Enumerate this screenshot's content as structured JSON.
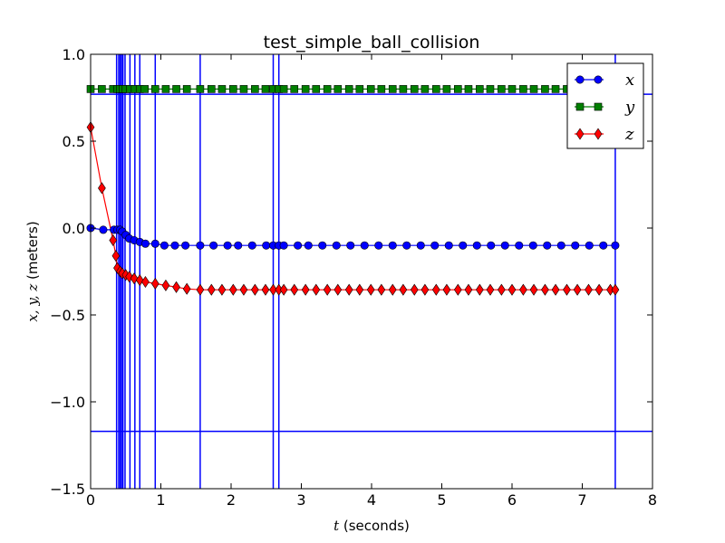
{
  "chart_data": {
    "type": "line",
    "title": "test_simple_ball_collision",
    "xlabel": {
      "var": "t",
      "rest": " (seconds)"
    },
    "ylabel": {
      "var": "x, y, z",
      "rest": " (meters)"
    },
    "xlim": [
      0,
      8
    ],
    "ylim": [
      -1.5,
      1.0
    ],
    "xticks": [
      0,
      1,
      2,
      3,
      4,
      5,
      6,
      7,
      8
    ],
    "xtick_labels": [
      "0",
      "1",
      "2",
      "3",
      "4",
      "5",
      "6",
      "7",
      "8"
    ],
    "yticks": [
      -1.5,
      -1.0,
      -0.5,
      0.0,
      0.5,
      1.0
    ],
    "ytick_labels": [
      "−1.5",
      "−1.0",
      "−0.5",
      "0.0",
      "0.5",
      "1.0"
    ],
    "grid": false,
    "legend_position": "top-right",
    "vlines": [
      0.37,
      0.4,
      0.42,
      0.44,
      0.46,
      0.49,
      0.56,
      0.63,
      0.7,
      0.92,
      1.56,
      2.6,
      2.68,
      7.47
    ],
    "hlines": [
      0.77,
      -1.17
    ],
    "line_color": "#0000ff",
    "series": [
      {
        "name": "x",
        "color": "#0000ff",
        "marker": "circle",
        "x": [
          0.0,
          0.18,
          0.33,
          0.38,
          0.42,
          0.45,
          0.5,
          0.55,
          0.62,
          0.7,
          0.78,
          0.92,
          1.05,
          1.2,
          1.35,
          1.56,
          1.75,
          1.95,
          2.1,
          2.3,
          2.5,
          2.6,
          2.68,
          2.75,
          2.95,
          3.1,
          3.3,
          3.5,
          3.7,
          3.9,
          4.1,
          4.3,
          4.5,
          4.7,
          4.9,
          5.1,
          5.3,
          5.5,
          5.7,
          5.9,
          6.1,
          6.3,
          6.5,
          6.7,
          6.9,
          7.1,
          7.3,
          7.47
        ],
        "values": [
          0.0,
          -0.01,
          -0.01,
          -0.01,
          -0.01,
          -0.02,
          -0.04,
          -0.06,
          -0.07,
          -0.08,
          -0.09,
          -0.09,
          -0.1,
          -0.1,
          -0.1,
          -0.1,
          -0.1,
          -0.1,
          -0.1,
          -0.1,
          -0.1,
          -0.1,
          -0.1,
          -0.1,
          -0.1,
          -0.1,
          -0.1,
          -0.1,
          -0.1,
          -0.1,
          -0.1,
          -0.1,
          -0.1,
          -0.1,
          -0.1,
          -0.1,
          -0.1,
          -0.1,
          -0.1,
          -0.1,
          -0.1,
          -0.1,
          -0.1,
          -0.1,
          -0.1,
          -0.1,
          -0.1,
          -0.1
        ]
      },
      {
        "name": "y",
        "color": "#008000",
        "marker": "square",
        "x": [
          0.0,
          0.16,
          0.32,
          0.38,
          0.42,
          0.46,
          0.5,
          0.56,
          0.63,
          0.7,
          0.77,
          0.92,
          1.07,
          1.22,
          1.37,
          1.56,
          1.72,
          1.87,
          2.03,
          2.18,
          2.34,
          2.49,
          2.6,
          2.68,
          2.75,
          2.9,
          3.06,
          3.21,
          3.37,
          3.52,
          3.68,
          3.83,
          3.99,
          4.14,
          4.3,
          4.45,
          4.61,
          4.76,
          4.92,
          5.07,
          5.23,
          5.38,
          5.54,
          5.69,
          5.85,
          6.0,
          6.16,
          6.31,
          6.47,
          6.62,
          6.78
        ],
        "values": [
          0.8,
          0.8,
          0.8,
          0.8,
          0.8,
          0.8,
          0.8,
          0.8,
          0.8,
          0.8,
          0.8,
          0.8,
          0.8,
          0.8,
          0.8,
          0.8,
          0.8,
          0.8,
          0.8,
          0.8,
          0.8,
          0.8,
          0.8,
          0.8,
          0.8,
          0.8,
          0.8,
          0.8,
          0.8,
          0.8,
          0.8,
          0.8,
          0.8,
          0.8,
          0.8,
          0.8,
          0.8,
          0.8,
          0.8,
          0.8,
          0.8,
          0.8,
          0.8,
          0.8,
          0.8,
          0.8,
          0.8,
          0.8,
          0.8,
          0.8,
          0.8
        ]
      },
      {
        "name": "z",
        "color": "#ff0000",
        "marker": "diamond",
        "x": [
          0.0,
          0.16,
          0.32,
          0.36,
          0.38,
          0.42,
          0.45,
          0.5,
          0.55,
          0.62,
          0.7,
          0.78,
          0.92,
          1.07,
          1.22,
          1.37,
          1.56,
          1.72,
          1.87,
          2.03,
          2.18,
          2.34,
          2.49,
          2.6,
          2.68,
          2.75,
          2.9,
          3.06,
          3.21,
          3.37,
          3.52,
          3.68,
          3.83,
          3.99,
          4.14,
          4.3,
          4.45,
          4.61,
          4.76,
          4.92,
          5.07,
          5.23,
          5.38,
          5.54,
          5.69,
          5.85,
          6.0,
          6.16,
          6.31,
          6.47,
          6.62,
          6.78,
          6.93,
          7.09,
          7.24,
          7.4,
          7.47
        ],
        "values": [
          0.58,
          0.23,
          -0.07,
          -0.16,
          -0.23,
          -0.25,
          -0.26,
          -0.27,
          -0.28,
          -0.29,
          -0.3,
          -0.31,
          -0.32,
          -0.33,
          -0.34,
          -0.35,
          -0.355,
          -0.355,
          -0.355,
          -0.355,
          -0.355,
          -0.355,
          -0.355,
          -0.355,
          -0.355,
          -0.355,
          -0.355,
          -0.355,
          -0.355,
          -0.355,
          -0.355,
          -0.355,
          -0.355,
          -0.355,
          -0.355,
          -0.355,
          -0.355,
          -0.355,
          -0.355,
          -0.355,
          -0.355,
          -0.355,
          -0.355,
          -0.355,
          -0.355,
          -0.355,
          -0.355,
          -0.355,
          -0.355,
          -0.355,
          -0.355,
          -0.355,
          -0.355,
          -0.355,
          -0.355,
          -0.355,
          -0.355
        ]
      }
    ]
  }
}
